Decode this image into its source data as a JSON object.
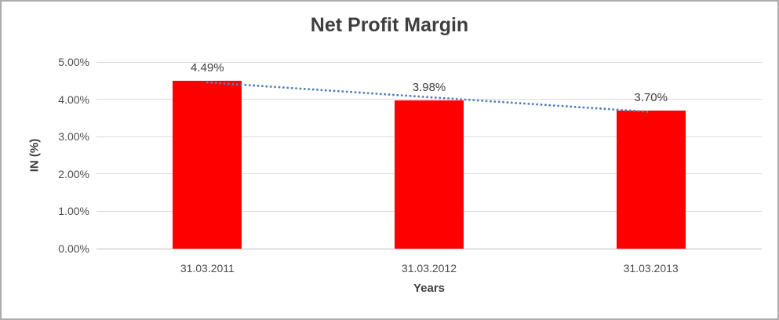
{
  "chart_data": {
    "type": "bar",
    "title": "Net Profit Margin",
    "categories": [
      "31.03.2011",
      "31.03.2012",
      "31.03.2013"
    ],
    "values": [
      4.49,
      3.98,
      3.7
    ],
    "data_labels": [
      "4.49%",
      "3.98%",
      "3.70%"
    ],
    "xlabel": "Years",
    "ylabel": "IN (%)",
    "ylim": [
      0,
      5
    ],
    "ytick_labels": [
      "0.00%",
      "1.00%",
      "2.00%",
      "3.00%",
      "4.00%",
      "5.00%"
    ],
    "grid": true,
    "legend_position": "none",
    "bar_color": "#FF0000",
    "trendline": {
      "type": "linear",
      "style": "dotted",
      "color": "#4F81BD"
    },
    "colors": {
      "background": "#FFFFFF",
      "frame_border": "#ACACAC",
      "gridline": "#D9D9D9",
      "axis_line": "#BFBFBF",
      "tick_text": "#4D4D4D",
      "title_text": "#3F3F3F",
      "data_label_text": "#404040"
    }
  }
}
